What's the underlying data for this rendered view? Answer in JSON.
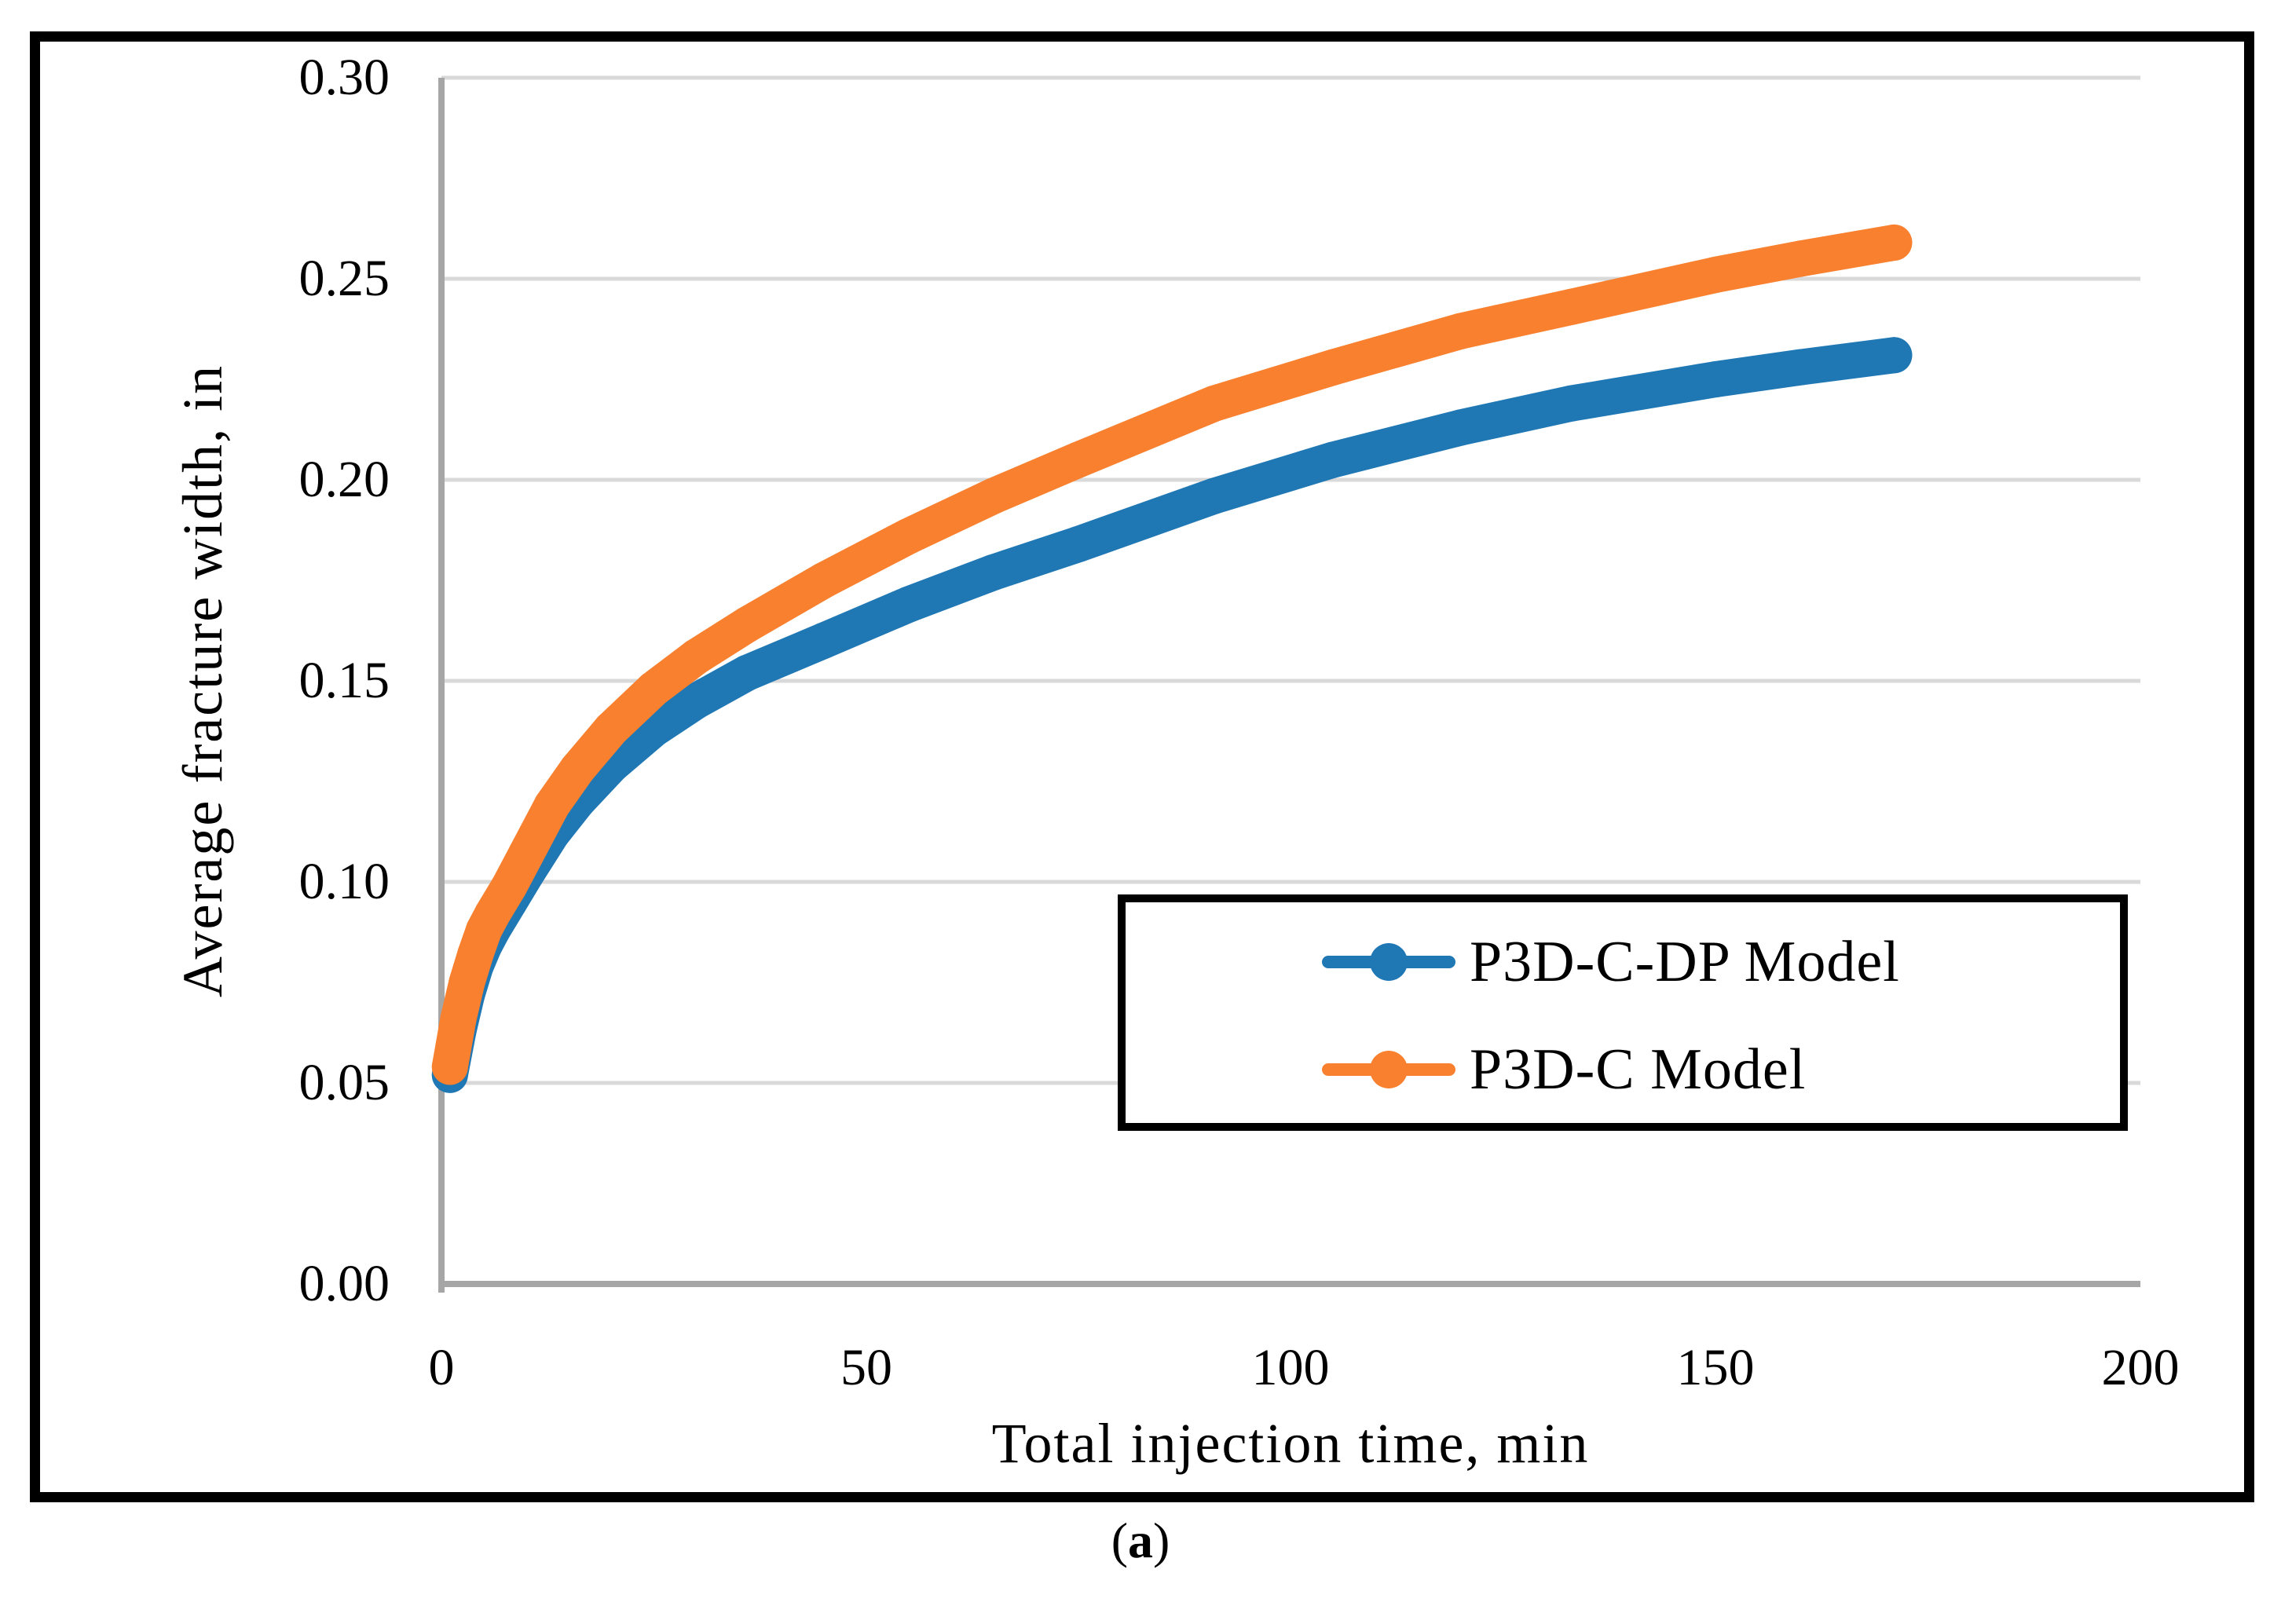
{
  "figure": {
    "caption": {
      "open": "(",
      "letter": "a",
      "close": ")"
    }
  },
  "chart_data": {
    "type": "line",
    "title": "",
    "xlabel": "Total injection time, min",
    "ylabel": "Average fracture width, in",
    "xlim": [
      0,
      200
    ],
    "ylim": [
      0.0,
      0.3
    ],
    "xticks": [
      0,
      50,
      100,
      150,
      200
    ],
    "xticklabels": [
      "0",
      "50",
      "100",
      "150",
      "200"
    ],
    "yticks": [
      0.0,
      0.05,
      0.1,
      0.15,
      0.2,
      0.25,
      0.3
    ],
    "yticklabels": [
      "0.00",
      "0.05",
      "0.10",
      "0.15",
      "0.20",
      "0.25",
      "0.30"
    ],
    "grid": true,
    "legend_position": "inside-lower-right",
    "colors": {
      "grid": "#D9D9D9",
      "axis": "#A6A6A6",
      "border": "#000000"
    },
    "series": [
      {
        "name": "P3D-C-DP Model",
        "color": "#1F77B4",
        "points": [
          [
            1,
            0.052
          ],
          [
            2,
            0.063
          ],
          [
            3,
            0.072
          ],
          [
            4,
            0.079
          ],
          [
            5,
            0.084
          ],
          [
            6,
            0.088
          ],
          [
            8,
            0.095
          ],
          [
            10,
            0.102
          ],
          [
            13,
            0.112
          ],
          [
            16,
            0.12
          ],
          [
            20,
            0.129
          ],
          [
            25,
            0.138
          ],
          [
            30,
            0.145
          ],
          [
            36,
            0.152
          ],
          [
            45,
            0.16
          ],
          [
            55,
            0.169
          ],
          [
            65,
            0.177
          ],
          [
            75,
            0.184
          ],
          [
            91,
            0.196
          ],
          [
            105,
            0.205
          ],
          [
            120,
            0.213
          ],
          [
            133,
            0.219
          ],
          [
            150,
            0.225
          ],
          [
            160,
            0.228
          ],
          [
            171,
            0.231
          ]
        ]
      },
      {
        "name": "P3D-C Model",
        "color": "#F8802E",
        "points": [
          [
            1,
            0.054
          ],
          [
            2,
            0.066
          ],
          [
            3,
            0.075
          ],
          [
            4,
            0.082
          ],
          [
            5,
            0.088
          ],
          [
            6,
            0.092
          ],
          [
            8,
            0.099
          ],
          [
            10,
            0.107
          ],
          [
            13,
            0.119
          ],
          [
            16,
            0.128
          ],
          [
            20,
            0.138
          ],
          [
            25,
            0.148
          ],
          [
            30,
            0.156
          ],
          [
            36,
            0.164
          ],
          [
            45,
            0.175
          ],
          [
            55,
            0.186
          ],
          [
            65,
            0.196
          ],
          [
            75,
            0.205
          ],
          [
            91,
            0.219
          ],
          [
            105,
            0.228
          ],
          [
            120,
            0.237
          ],
          [
            133,
            0.243
          ],
          [
            150,
            0.251
          ],
          [
            160,
            0.255
          ],
          [
            171,
            0.259
          ]
        ]
      }
    ]
  }
}
